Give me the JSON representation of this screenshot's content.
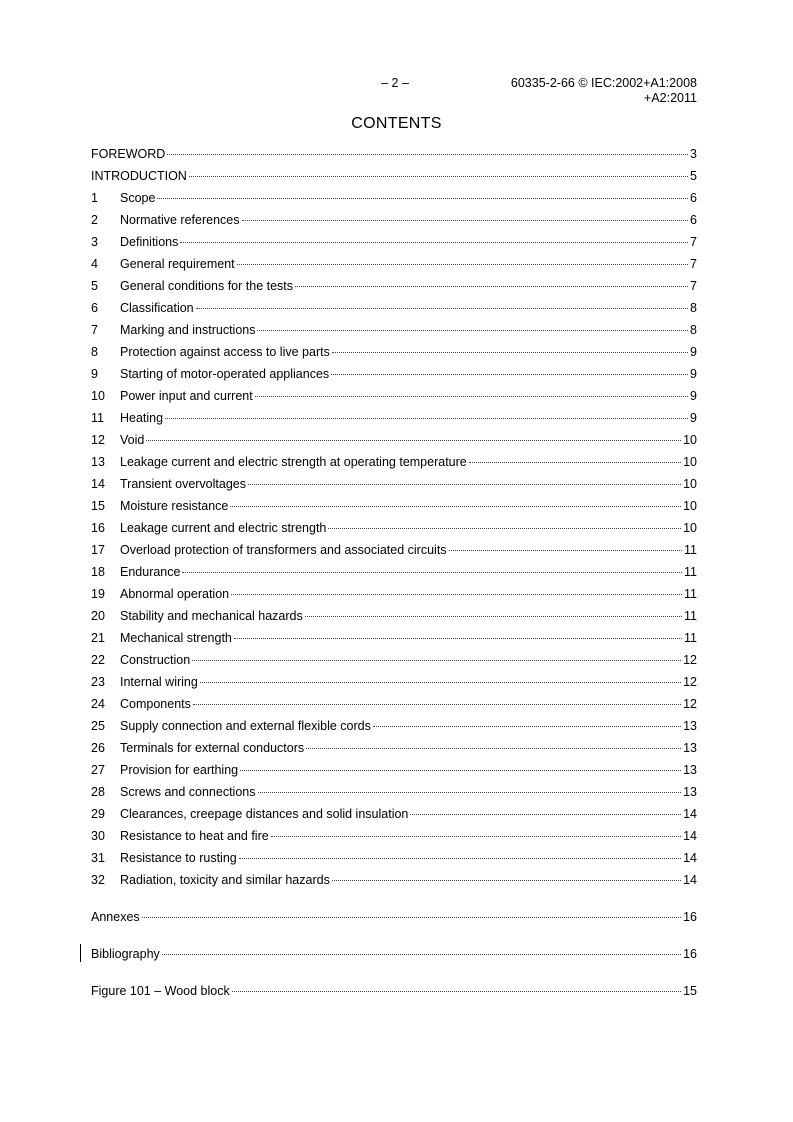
{
  "header": {
    "page": "– 2 –",
    "ref_line1": "60335-2-66 © IEC:2002+A1:2008",
    "ref_line2": "+A2:2011"
  },
  "title": "CONTENTS",
  "toc": [
    {
      "num": "",
      "title": "FOREWORD",
      "page": "3"
    },
    {
      "num": "",
      "title": "INTRODUCTION",
      "page": "5"
    },
    {
      "num": "1",
      "title": "Scope",
      "page": "6"
    },
    {
      "num": "2",
      "title": "Normative references",
      "page": "6"
    },
    {
      "num": "3",
      "title": "Definitions",
      "page": "7"
    },
    {
      "num": "4",
      "title": "General requirement",
      "page": "7"
    },
    {
      "num": "5",
      "title": "General conditions for the tests",
      "page": "7"
    },
    {
      "num": "6",
      "title": "Classification",
      "page": "8"
    },
    {
      "num": "7",
      "title": "Marking and instructions",
      "page": "8"
    },
    {
      "num": "8",
      "title": "Protection against access to live parts",
      "page": "9"
    },
    {
      "num": "9",
      "title": "Starting of motor-operated appliances",
      "page": "9"
    },
    {
      "num": "10",
      "title": "Power input and current",
      "page": "9"
    },
    {
      "num": "11",
      "title": "Heating",
      "page": "9"
    },
    {
      "num": "12",
      "title": "Void",
      "page": "10"
    },
    {
      "num": "13",
      "title": "Leakage current and electric strength at operating temperature",
      "page": "10"
    },
    {
      "num": "14",
      "title": "Transient overvoltages",
      "page": "10"
    },
    {
      "num": "15",
      "title": "Moisture resistance",
      "page": "10"
    },
    {
      "num": "16",
      "title": "Leakage current and electric strength",
      "page": "10"
    },
    {
      "num": "17",
      "title": "Overload protection of transformers and associated circuits",
      "page": "11"
    },
    {
      "num": "18",
      "title": "Endurance",
      "page": "11"
    },
    {
      "num": "19",
      "title": "Abnormal operation",
      "page": "11"
    },
    {
      "num": "20",
      "title": "Stability and mechanical hazards",
      "page": "11"
    },
    {
      "num": "21",
      "title": "Mechanical strength",
      "page": "11"
    },
    {
      "num": "22",
      "title": "Construction",
      "page": "12"
    },
    {
      "num": "23",
      "title": "Internal wiring",
      "page": "12"
    },
    {
      "num": "24",
      "title": "Components",
      "page": "12"
    },
    {
      "num": "25",
      "title": "Supply connection and external flexible cords",
      "page": "13"
    },
    {
      "num": "26",
      "title": "Terminals for external conductors",
      "page": "13"
    },
    {
      "num": "27",
      "title": "Provision for earthing",
      "page": "13"
    },
    {
      "num": "28",
      "title": "Screws and connections",
      "page": "13"
    },
    {
      "num": "29",
      "title": "Clearances, creepage distances and solid insulation",
      "page": "14"
    },
    {
      "num": "30",
      "title": "Resistance to heat and fire",
      "page": "14"
    },
    {
      "num": "31",
      "title": "Resistance to rusting",
      "page": "14"
    },
    {
      "num": "32",
      "title": "Radiation, toxicity and similar hazards",
      "page": "14"
    }
  ],
  "back_matter": [
    {
      "title": "Annexes",
      "page": "16"
    },
    {
      "title": "Bibliography",
      "page": "16"
    },
    {
      "title": "Figure 101 – Wood block",
      "page": "15"
    }
  ]
}
